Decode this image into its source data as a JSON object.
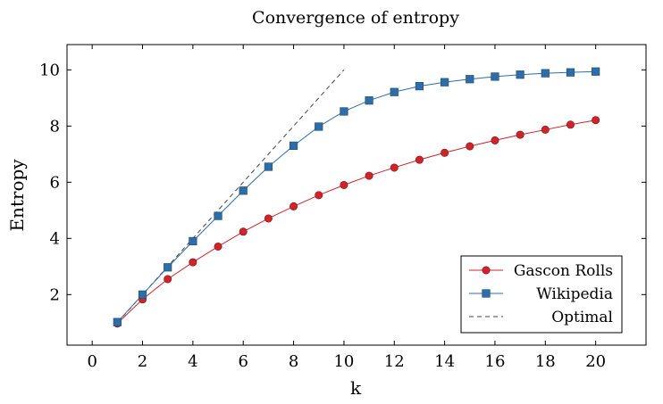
{
  "chart_data": {
    "type": "line",
    "title": "Convergence of entropy",
    "xlabel": "k",
    "ylabel": "Entropy",
    "xlim": [
      -1,
      22
    ],
    "ylim": [
      0.2,
      10.9
    ],
    "xticks": [
      0,
      2,
      4,
      6,
      8,
      10,
      12,
      14,
      16,
      18,
      20
    ],
    "yticks": [
      2,
      4,
      6,
      8,
      10
    ],
    "grid": false,
    "legend_position": "bottom-right",
    "series": [
      {
        "name": "Gascon Rolls",
        "color": "#d1232a",
        "marker": "circle",
        "line_style": "solid",
        "x": [
          1,
          2,
          3,
          4,
          5,
          6,
          7,
          8,
          9,
          10,
          11,
          12,
          13,
          14,
          15,
          16,
          17,
          18,
          19,
          20
        ],
        "y": [
          0.97,
          1.83,
          2.55,
          3.15,
          3.71,
          4.24,
          4.71,
          5.14,
          5.54,
          5.9,
          6.23,
          6.52,
          6.8,
          7.05,
          7.28,
          7.49,
          7.69,
          7.87,
          8.05,
          8.21
        ]
      },
      {
        "name": "Wikipedia",
        "color": "#2e6da6",
        "marker": "square",
        "line_style": "solid",
        "x": [
          1,
          2,
          3,
          4,
          5,
          6,
          7,
          8,
          9,
          10,
          11,
          12,
          13,
          14,
          15,
          16,
          17,
          18,
          19,
          20
        ],
        "y": [
          1.02,
          2.0,
          2.97,
          3.9,
          4.8,
          5.7,
          6.55,
          7.3,
          7.98,
          8.52,
          8.91,
          9.21,
          9.42,
          9.56,
          9.67,
          9.76,
          9.83,
          9.88,
          9.91,
          9.94
        ]
      },
      {
        "name": "Optimal",
        "color": "#444444",
        "marker": "none",
        "line_style": "dashed",
        "x": [
          1,
          10
        ],
        "y": [
          1,
          10
        ]
      }
    ]
  }
}
